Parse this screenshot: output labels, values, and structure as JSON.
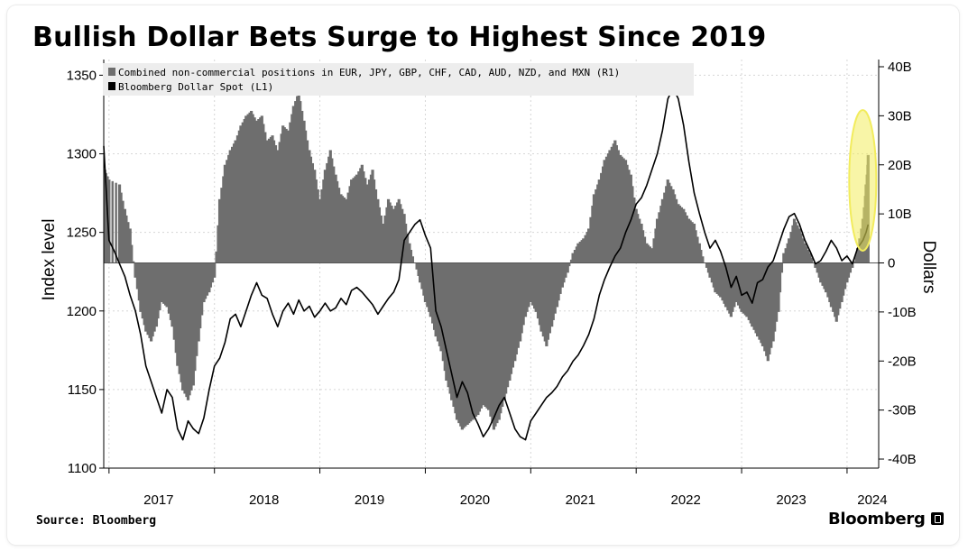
{
  "header": {
    "title": "Bullish Dollar Bets Surge to Highest Since 2019"
  },
  "footer": {
    "source": "Source: Bloomberg",
    "brand": "Bloomberg"
  },
  "chart_data": {
    "type": "bar+line",
    "title": "Bullish Dollar Bets Surge to Highest Since 2019",
    "y_left": {
      "label": "Index level",
      "range": [
        1100,
        1360
      ],
      "ticks": [
        1100,
        1150,
        1200,
        1250,
        1300,
        1350
      ]
    },
    "y_right": {
      "label": "Dollars",
      "range": [
        -40,
        40
      ],
      "ticks": [
        -40,
        -30,
        -20,
        -10,
        0,
        10,
        20,
        30,
        40
      ],
      "tick_labels": [
        "-40B",
        "-30B",
        "-20B",
        "-10B",
        "0",
        "10B",
        "20B",
        "30B",
        "40B"
      ]
    },
    "x_axis": {
      "range": [
        2016.95,
        2024.3
      ],
      "ticks": [
        2017,
        2018,
        2019,
        2020,
        2021,
        2022,
        2023,
        2024
      ],
      "tick_labels": [
        "2017",
        "2018",
        "2019",
        "2020",
        "2021",
        "2022",
        "2023",
        "2024"
      ]
    },
    "legend_position": "top-left",
    "highlight": {
      "shape": "ellipse",
      "color": "#f2ec5e",
      "x": 2024.2,
      "y_right": 15
    },
    "series": [
      {
        "name": "Combined non-commercial positions in EUR, JPY, GBP, CHF, CAD, AUD, NZD, and MXN (R1)",
        "type": "bar",
        "axis": "right",
        "color": "#6e6e6e",
        "points": [
          [
            2016.96,
            19
          ],
          [
            2017.0,
            17
          ],
          [
            2017.1,
            16
          ],
          [
            2017.15,
            11
          ],
          [
            2017.2,
            7
          ],
          [
            2017.25,
            -3
          ],
          [
            2017.3,
            -10
          ],
          [
            2017.35,
            -14
          ],
          [
            2017.4,
            -16
          ],
          [
            2017.45,
            -13
          ],
          [
            2017.5,
            -8
          ],
          [
            2017.55,
            -9
          ],
          [
            2017.6,
            -13
          ],
          [
            2017.65,
            -21
          ],
          [
            2017.7,
            -26
          ],
          [
            2017.75,
            -28
          ],
          [
            2017.8,
            -25
          ],
          [
            2017.85,
            -16
          ],
          [
            2017.9,
            -8
          ],
          [
            2017.95,
            -6
          ],
          [
            2018.0,
            -3
          ],
          [
            2018.05,
            13
          ],
          [
            2018.1,
            20
          ],
          [
            2018.15,
            23
          ],
          [
            2018.2,
            25
          ],
          [
            2018.25,
            28
          ],
          [
            2018.3,
            30
          ],
          [
            2018.35,
            31
          ],
          [
            2018.4,
            29
          ],
          [
            2018.45,
            30
          ],
          [
            2018.5,
            25
          ],
          [
            2018.55,
            26
          ],
          [
            2018.6,
            23
          ],
          [
            2018.65,
            28
          ],
          [
            2018.7,
            27
          ],
          [
            2018.75,
            32
          ],
          [
            2018.8,
            35
          ],
          [
            2018.85,
            29
          ],
          [
            2018.9,
            23
          ],
          [
            2018.95,
            19
          ],
          [
            2019.0,
            13
          ],
          [
            2019.05,
            19
          ],
          [
            2019.1,
            23
          ],
          [
            2019.15,
            18
          ],
          [
            2019.2,
            14
          ],
          [
            2019.25,
            13
          ],
          [
            2019.3,
            17
          ],
          [
            2019.35,
            18
          ],
          [
            2019.4,
            20
          ],
          [
            2019.45,
            16
          ],
          [
            2019.5,
            19
          ],
          [
            2019.55,
            13
          ],
          [
            2019.6,
            8
          ],
          [
            2019.65,
            13
          ],
          [
            2019.7,
            11
          ],
          [
            2019.75,
            13
          ],
          [
            2019.8,
            10
          ],
          [
            2019.85,
            4
          ],
          [
            2019.9,
            0
          ],
          [
            2019.95,
            -4
          ],
          [
            2020.0,
            -8
          ],
          [
            2020.05,
            -11
          ],
          [
            2020.1,
            -15
          ],
          [
            2020.15,
            -18
          ],
          [
            2020.2,
            -24
          ],
          [
            2020.25,
            -28
          ],
          [
            2020.3,
            -32
          ],
          [
            2020.35,
            -34
          ],
          [
            2020.4,
            -33
          ],
          [
            2020.45,
            -32
          ],
          [
            2020.5,
            -31
          ],
          [
            2020.55,
            -29
          ],
          [
            2020.6,
            -30
          ],
          [
            2020.65,
            -34
          ],
          [
            2020.7,
            -32
          ],
          [
            2020.75,
            -28
          ],
          [
            2020.8,
            -24
          ],
          [
            2020.85,
            -20
          ],
          [
            2020.9,
            -16
          ],
          [
            2020.95,
            -11
          ],
          [
            2021.0,
            -8
          ],
          [
            2021.05,
            -10
          ],
          [
            2021.1,
            -14
          ],
          [
            2021.15,
            -17
          ],
          [
            2021.2,
            -13
          ],
          [
            2021.25,
            -9
          ],
          [
            2021.3,
            -5
          ],
          [
            2021.35,
            -2
          ],
          [
            2021.4,
            2
          ],
          [
            2021.45,
            4
          ],
          [
            2021.5,
            5
          ],
          [
            2021.55,
            7
          ],
          [
            2021.6,
            14
          ],
          [
            2021.65,
            17
          ],
          [
            2021.7,
            21
          ],
          [
            2021.75,
            23
          ],
          [
            2021.8,
            25
          ],
          [
            2021.85,
            22
          ],
          [
            2021.9,
            21
          ],
          [
            2021.95,
            18
          ],
          [
            2022.0,
            11
          ],
          [
            2022.05,
            8
          ],
          [
            2022.1,
            4
          ],
          [
            2022.15,
            3
          ],
          [
            2022.2,
            9
          ],
          [
            2022.25,
            13
          ],
          [
            2022.3,
            17
          ],
          [
            2022.35,
            15
          ],
          [
            2022.4,
            12
          ],
          [
            2022.45,
            11
          ],
          [
            2022.5,
            9
          ],
          [
            2022.55,
            8
          ],
          [
            2022.6,
            4
          ],
          [
            2022.65,
            0
          ],
          [
            2022.7,
            -3
          ],
          [
            2022.75,
            -6
          ],
          [
            2022.8,
            -7
          ],
          [
            2022.85,
            -9
          ],
          [
            2022.9,
            -11
          ],
          [
            2022.95,
            -8
          ],
          [
            2023.0,
            -10
          ],
          [
            2023.05,
            -11
          ],
          [
            2023.1,
            -13
          ],
          [
            2023.15,
            -15
          ],
          [
            2023.2,
            -17
          ],
          [
            2023.25,
            -20
          ],
          [
            2023.3,
            -16
          ],
          [
            2023.35,
            -10
          ],
          [
            2023.4,
            2
          ],
          [
            2023.45,
            5
          ],
          [
            2023.5,
            9
          ],
          [
            2023.55,
            7
          ],
          [
            2023.6,
            4
          ],
          [
            2023.65,
            2
          ],
          [
            2023.7,
            -1
          ],
          [
            2023.75,
            -4
          ],
          [
            2023.8,
            -6
          ],
          [
            2023.85,
            -9
          ],
          [
            2023.9,
            -12
          ],
          [
            2023.95,
            -8
          ],
          [
            2024.0,
            -4
          ],
          [
            2024.05,
            -1
          ],
          [
            2024.1,
            3
          ],
          [
            2024.15,
            9
          ],
          [
            2024.18,
            16
          ],
          [
            2024.2,
            22
          ]
        ]
      },
      {
        "name": "Bloomberg Dollar Spot (L1)",
        "type": "line",
        "axis": "left",
        "color": "#000000",
        "points": [
          [
            2016.95,
            1305
          ],
          [
            2017.0,
            1245
          ],
          [
            2017.05,
            1238
          ],
          [
            2017.1,
            1230
          ],
          [
            2017.15,
            1222
          ],
          [
            2017.2,
            1210
          ],
          [
            2017.25,
            1200
          ],
          [
            2017.3,
            1185
          ],
          [
            2017.35,
            1165
          ],
          [
            2017.4,
            1155
          ],
          [
            2017.45,
            1145
          ],
          [
            2017.5,
            1135
          ],
          [
            2017.55,
            1150
          ],
          [
            2017.6,
            1145
          ],
          [
            2017.65,
            1125
          ],
          [
            2017.7,
            1118
          ],
          [
            2017.75,
            1130
          ],
          [
            2017.8,
            1125
          ],
          [
            2017.85,
            1122
          ],
          [
            2017.9,
            1132
          ],
          [
            2017.95,
            1150
          ],
          [
            2018.0,
            1165
          ],
          [
            2018.05,
            1170
          ],
          [
            2018.1,
            1180
          ],
          [
            2018.15,
            1195
          ],
          [
            2018.2,
            1198
          ],
          [
            2018.25,
            1190
          ],
          [
            2018.3,
            1200
          ],
          [
            2018.35,
            1210
          ],
          [
            2018.4,
            1218
          ],
          [
            2018.45,
            1210
          ],
          [
            2018.5,
            1208
          ],
          [
            2018.55,
            1198
          ],
          [
            2018.6,
            1190
          ],
          [
            2018.65,
            1200
          ],
          [
            2018.7,
            1205
          ],
          [
            2018.75,
            1198
          ],
          [
            2018.8,
            1207
          ],
          [
            2018.85,
            1200
          ],
          [
            2018.9,
            1203
          ],
          [
            2018.95,
            1196
          ],
          [
            2019.0,
            1200
          ],
          [
            2019.05,
            1205
          ],
          [
            2019.1,
            1200
          ],
          [
            2019.15,
            1202
          ],
          [
            2019.2,
            1208
          ],
          [
            2019.25,
            1204
          ],
          [
            2019.3,
            1213
          ],
          [
            2019.35,
            1215
          ],
          [
            2019.4,
            1212
          ],
          [
            2019.45,
            1208
          ],
          [
            2019.5,
            1204
          ],
          [
            2019.55,
            1198
          ],
          [
            2019.6,
            1203
          ],
          [
            2019.65,
            1208
          ],
          [
            2019.7,
            1212
          ],
          [
            2019.75,
            1220
          ],
          [
            2019.8,
            1245
          ],
          [
            2019.85,
            1250
          ],
          [
            2019.9,
            1255
          ],
          [
            2019.95,
            1258
          ],
          [
            2020.0,
            1248
          ],
          [
            2020.05,
            1240
          ],
          [
            2020.1,
            1200
          ],
          [
            2020.15,
            1190
          ],
          [
            2020.2,
            1175
          ],
          [
            2020.25,
            1160
          ],
          [
            2020.3,
            1145
          ],
          [
            2020.35,
            1155
          ],
          [
            2020.4,
            1148
          ],
          [
            2020.45,
            1135
          ],
          [
            2020.5,
            1128
          ],
          [
            2020.55,
            1120
          ],
          [
            2020.6,
            1125
          ],
          [
            2020.65,
            1132
          ],
          [
            2020.7,
            1140
          ],
          [
            2020.75,
            1145
          ],
          [
            2020.8,
            1135
          ],
          [
            2020.85,
            1125
          ],
          [
            2020.9,
            1120
          ],
          [
            2020.95,
            1118
          ],
          [
            2021.0,
            1130
          ],
          [
            2021.05,
            1135
          ],
          [
            2021.1,
            1140
          ],
          [
            2021.15,
            1145
          ],
          [
            2021.2,
            1148
          ],
          [
            2021.25,
            1152
          ],
          [
            2021.3,
            1158
          ],
          [
            2021.35,
            1162
          ],
          [
            2021.4,
            1168
          ],
          [
            2021.45,
            1172
          ],
          [
            2021.5,
            1178
          ],
          [
            2021.55,
            1185
          ],
          [
            2021.6,
            1195
          ],
          [
            2021.65,
            1210
          ],
          [
            2021.7,
            1220
          ],
          [
            2021.75,
            1228
          ],
          [
            2021.8,
            1235
          ],
          [
            2021.85,
            1240
          ],
          [
            2021.9,
            1250
          ],
          [
            2021.95,
            1258
          ],
          [
            2022.0,
            1268
          ],
          [
            2022.05,
            1272
          ],
          [
            2022.1,
            1280
          ],
          [
            2022.15,
            1290
          ],
          [
            2022.2,
            1300
          ],
          [
            2022.25,
            1315
          ],
          [
            2022.3,
            1335
          ],
          [
            2022.35,
            1342
          ],
          [
            2022.4,
            1335
          ],
          [
            2022.45,
            1318
          ],
          [
            2022.5,
            1295
          ],
          [
            2022.55,
            1275
          ],
          [
            2022.6,
            1262
          ],
          [
            2022.65,
            1250
          ],
          [
            2022.7,
            1240
          ],
          [
            2022.75,
            1245
          ],
          [
            2022.8,
            1238
          ],
          [
            2022.85,
            1228
          ],
          [
            2022.9,
            1215
          ],
          [
            2022.95,
            1222
          ],
          [
            2023.0,
            1210
          ],
          [
            2023.05,
            1212
          ],
          [
            2023.1,
            1205
          ],
          [
            2023.15,
            1218
          ],
          [
            2023.2,
            1220
          ],
          [
            2023.25,
            1228
          ],
          [
            2023.3,
            1232
          ],
          [
            2023.35,
            1242
          ],
          [
            2023.4,
            1252
          ],
          [
            2023.45,
            1260
          ],
          [
            2023.5,
            1262
          ],
          [
            2023.55,
            1255
          ],
          [
            2023.6,
            1245
          ],
          [
            2023.65,
            1238
          ],
          [
            2023.7,
            1230
          ],
          [
            2023.75,
            1232
          ],
          [
            2023.8,
            1238
          ],
          [
            2023.85,
            1245
          ],
          [
            2023.9,
            1240
          ],
          [
            2023.95,
            1232
          ],
          [
            2024.0,
            1235
          ],
          [
            2024.05,
            1230
          ],
          [
            2024.1,
            1240
          ],
          [
            2024.15,
            1245
          ],
          [
            2024.18,
            1250
          ],
          [
            2024.2,
            1255
          ]
        ]
      }
    ]
  }
}
